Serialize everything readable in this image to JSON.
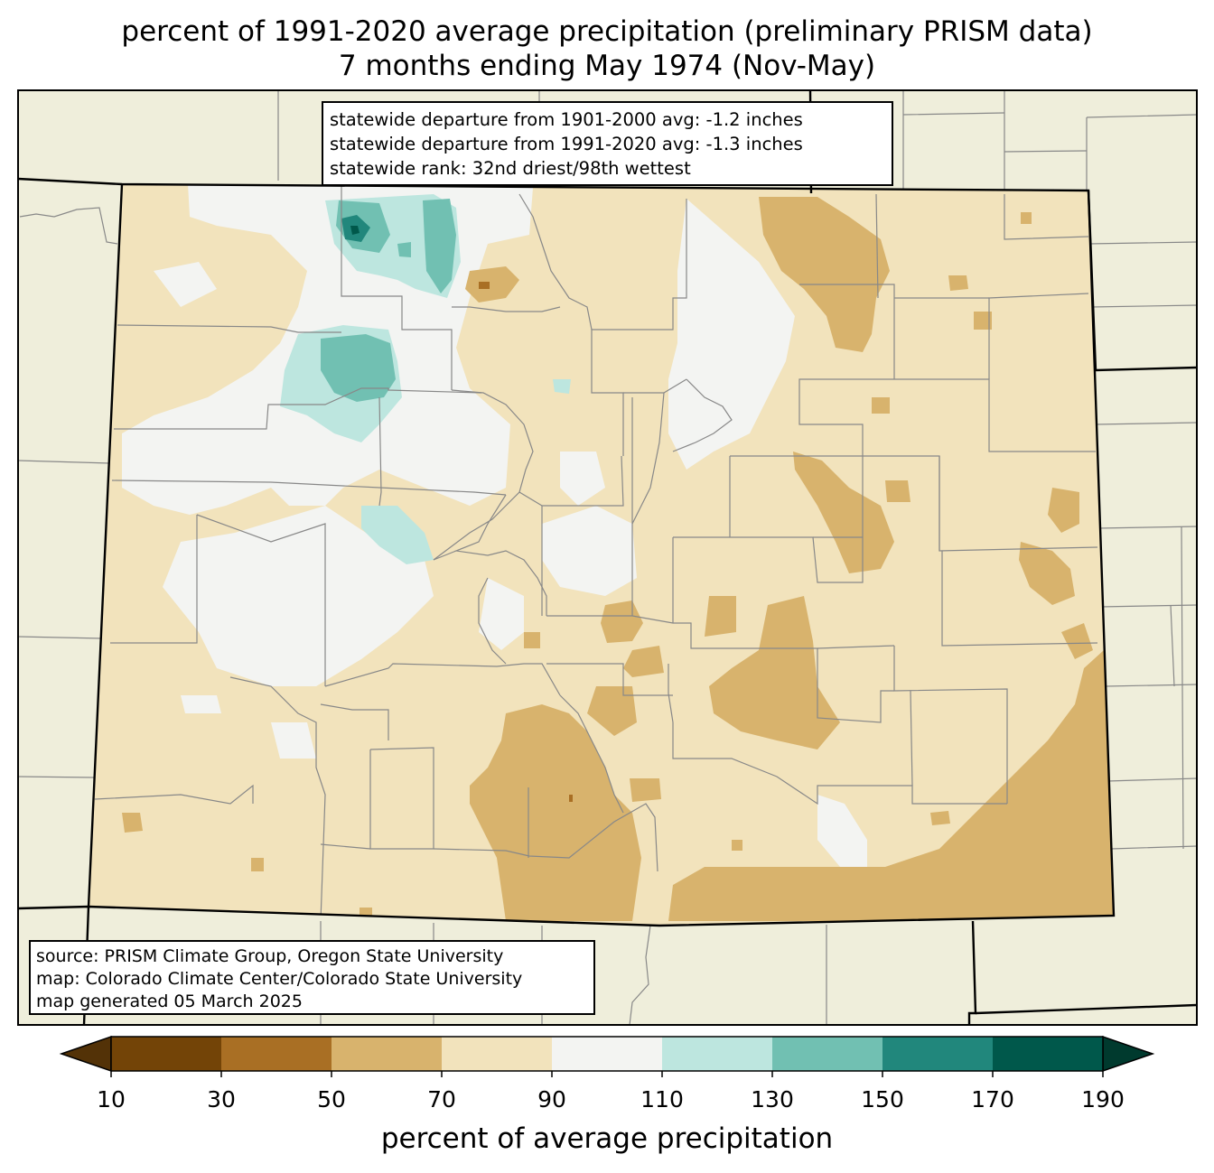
{
  "title": {
    "line1": "percent of 1991-2020 average precipitation (preliminary PRISM data)",
    "line2": "7 months ending May 1974 (Nov-May)"
  },
  "stats": {
    "line1": "statewide departure from 1901-2000 avg: -1.2 inches",
    "line2": "statewide departure from 1991-2020 avg: -1.3 inches",
    "line3": "statewide rank: 32nd driest/98th wettest"
  },
  "source": {
    "line1": "source: PRISM Climate Group, Oregon State University",
    "line2": "map: Colorado Climate Center/Colorado State University",
    "line3": "map generated 05 March 2025"
  },
  "colorbar": {
    "label": "percent of average precipitation",
    "ticks": [
      "10",
      "30",
      "50",
      "70",
      "90",
      "110",
      "130",
      "150",
      "170",
      "190"
    ],
    "bins": [
      {
        "range": "10-30",
        "color": "#734407"
      },
      {
        "range": "30-50",
        "color": "#a96f24"
      },
      {
        "range": "50-70",
        "color": "#d8b36d"
      },
      {
        "range": "70-90",
        "color": "#f2e3bc"
      },
      {
        "range": "90-110",
        "color": "#f3f4f2"
      },
      {
        "range": "110-130",
        "color": "#bde6df"
      },
      {
        "range": "130-150",
        "color": "#71c0b2"
      },
      {
        "range": "150-170",
        "color": "#21877c"
      },
      {
        "range": "170-190",
        "color": "#00584b"
      }
    ],
    "under_color": "#533207",
    "over_color": "#003a2e"
  },
  "map_colors": {
    "background": "#efeedb",
    "county_line": "#888888",
    "state_line": "#000000"
  }
}
